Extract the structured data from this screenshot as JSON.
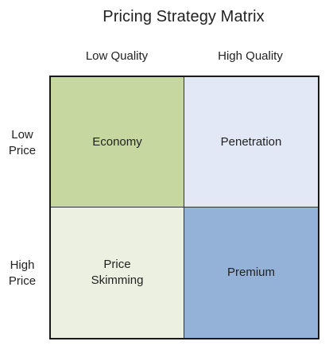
{
  "title": "Pricing Strategy Matrix",
  "columns": [
    "Low Quality",
    "High Quality"
  ],
  "rows": [
    "Low\nPrice",
    "High\nPrice"
  ],
  "cells": {
    "low_price_low_quality": {
      "label": "Economy",
      "color": "#c6d7a0"
    },
    "low_price_high_quality": {
      "label": "Penetration",
      "color": "#e2e8f5"
    },
    "high_price_low_quality": {
      "label": "Price\nSkimming",
      "color": "#ebf0e0"
    },
    "high_price_high_quality": {
      "label": "Premium",
      "color": "#94b2d7"
    }
  }
}
